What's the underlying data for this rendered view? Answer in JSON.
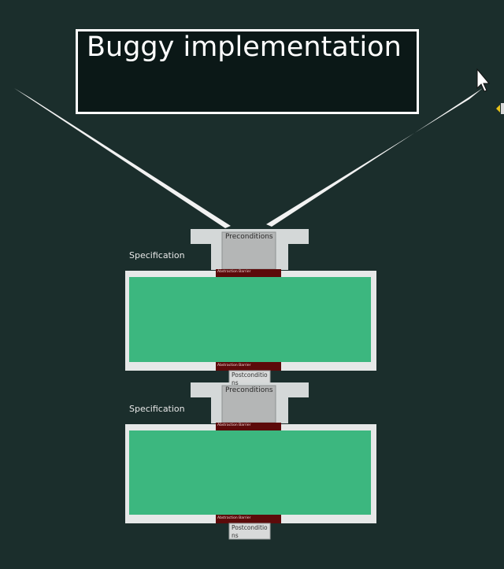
{
  "callout": {
    "title": "Buggy implementation"
  },
  "modules": [
    {
      "specification_label": "Specification",
      "preconditions_label": "Preconditions",
      "top_barrier_label": "Abstraction Barrier",
      "bottom_barrier_label": "Abstraction Barrier",
      "postconditions_label": "Postconditio ns"
    },
    {
      "specification_label": "Specification",
      "preconditions_label": "Preconditions",
      "top_barrier_label": "Abstraction Barrier",
      "bottom_barrier_label": "Abstraction Barrier",
      "postconditions_label": "Postconditio ns"
    }
  ],
  "colors": {
    "background": "#1b2e2c",
    "implementation_fill": "#3cb77f",
    "barrier": "#5c0a0a",
    "frame": "#e6e8e8",
    "precondition_fill": "#b4b6b6"
  },
  "icons": [
    "mouse-cursor-icon",
    "edge-arrow-marker-icon"
  ]
}
